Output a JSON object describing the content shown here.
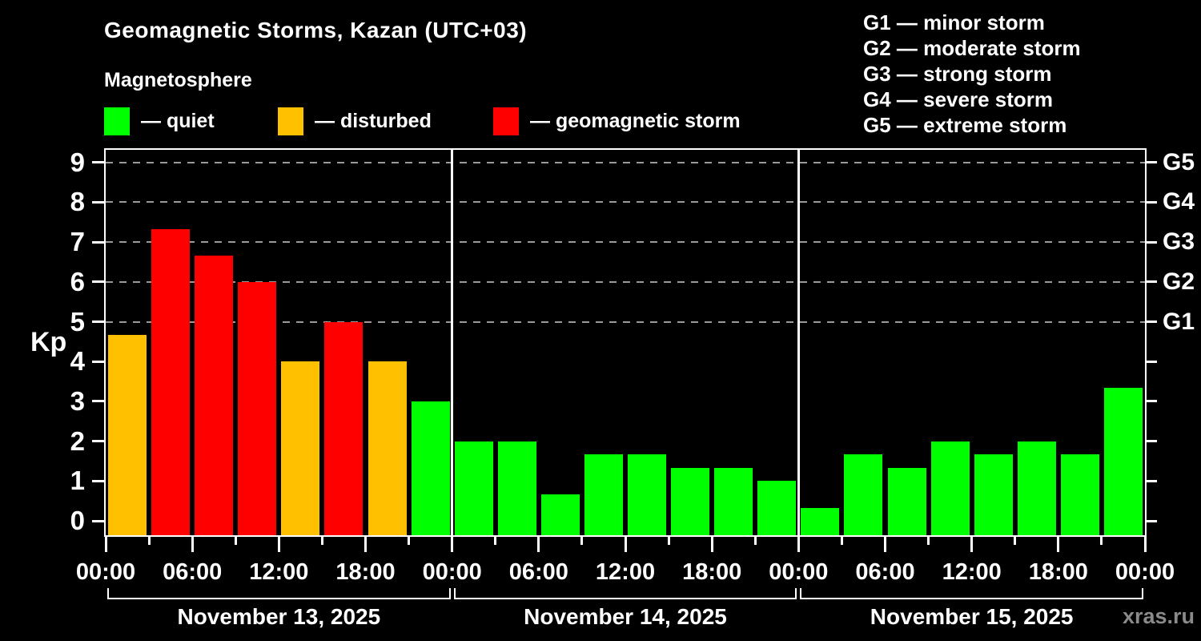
{
  "header": {
    "title": "Geomagnetic Storms, Kazan (UTC+03)",
    "subtitle": "Magnetosphere"
  },
  "legend": {
    "items": [
      {
        "name": "quiet",
        "label": "— quiet",
        "color": "#00ff00"
      },
      {
        "name": "disturbed",
        "label": "— disturbed",
        "color": "#ffc000"
      },
      {
        "name": "storm",
        "label": "— geomagnetic storm",
        "color": "#ff0000"
      }
    ]
  },
  "g_scale_legend": {
    "items": [
      "G1 — minor storm",
      "G2 — moderate storm",
      "G3 — strong storm",
      "G4 — severe storm",
      "G5 — extreme storm"
    ]
  },
  "watermark": "xras.ru",
  "chart_data": {
    "type": "bar",
    "title": "Geomagnetic Storms, Kazan (UTC+03)",
    "ylabel": "Kp",
    "ylim": [
      0,
      9
    ],
    "yticks": [
      0,
      1,
      2,
      3,
      4,
      5,
      6,
      7,
      8,
      9
    ],
    "grid_levels": [
      5,
      6,
      7,
      8,
      9
    ],
    "grid": "dashed horizontal at storm levels only",
    "legend_position": "top",
    "right_axis_labels": [
      {
        "value": 5,
        "label": "G1"
      },
      {
        "value": 6,
        "label": "G2"
      },
      {
        "value": 7,
        "label": "G3"
      },
      {
        "value": 8,
        "label": "G4"
      },
      {
        "value": 9,
        "label": "G5"
      }
    ],
    "x_labels": [
      "00:00",
      "06:00",
      "12:00",
      "18:00"
    ],
    "hours_per_bar": 3,
    "status_colors": {
      "quiet": "#00ff00",
      "disturbed": "#ffc000",
      "storm": "#ff0000"
    },
    "days": [
      {
        "date": "November 13, 2025",
        "values": [
          4.67,
          7.33,
          6.67,
          6.0,
          4.0,
          5.0,
          4.0,
          3.0
        ],
        "statuses": [
          "disturbed",
          "storm",
          "storm",
          "storm",
          "disturbed",
          "storm",
          "disturbed",
          "quiet"
        ]
      },
      {
        "date": "November 14, 2025",
        "values": [
          2.0,
          2.0,
          0.67,
          1.67,
          1.67,
          1.33,
          1.33,
          1.0
        ],
        "statuses": [
          "quiet",
          "quiet",
          "quiet",
          "quiet",
          "quiet",
          "quiet",
          "quiet",
          "quiet"
        ]
      },
      {
        "date": "November 15, 2025",
        "values": [
          0.33,
          1.67,
          1.33,
          2.0,
          1.67,
          2.0,
          1.67,
          3.33
        ],
        "statuses": [
          "quiet",
          "quiet",
          "quiet",
          "quiet",
          "quiet",
          "quiet",
          "quiet",
          "quiet"
        ]
      }
    ]
  }
}
